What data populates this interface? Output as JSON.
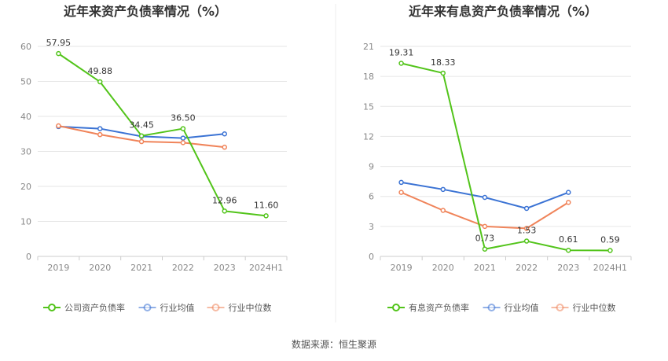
{
  "source": "数据来源：恒生聚源",
  "chart_data": [
    {
      "type": "line",
      "title": "近年来资产负债率情况（%）",
      "categories": [
        "2019",
        "2020",
        "2021",
        "2022",
        "2023",
        "2024H1"
      ],
      "y_ticks": [
        "0",
        "10",
        "20",
        "30",
        "40",
        "50",
        "60"
      ],
      "ylim": [
        0,
        60
      ],
      "grid": true,
      "legend_position": "bottom",
      "series": [
        {
          "name": "公司资产负债率",
          "color": "#52c41a",
          "values": [
            57.95,
            49.88,
            34.45,
            36.5,
            12.96,
            11.6
          ],
          "labels": [
            "57.95",
            "49.88",
            "34.45",
            "36.50",
            "12.96",
            "11.60"
          ]
        },
        {
          "name": "行业均值",
          "color": "#3b73d4",
          "values": [
            37.1,
            36.5,
            34.3,
            33.8,
            35.0,
            null
          ],
          "labels": []
        },
        {
          "name": "行业中位数",
          "color": "#f0845a",
          "values": [
            37.3,
            34.8,
            32.8,
            32.5,
            31.2,
            null
          ],
          "labels": []
        }
      ]
    },
    {
      "type": "line",
      "title": "近年来有息资产负债率情况（%）",
      "categories": [
        "2019",
        "2020",
        "2021",
        "2022",
        "2023",
        "2024H1"
      ],
      "y_ticks": [
        "0",
        "3",
        "6",
        "9",
        "12",
        "15",
        "18",
        "21"
      ],
      "ylim": [
        0,
        21
      ],
      "grid": true,
      "legend_position": "bottom",
      "series": [
        {
          "name": "有息资产负债率",
          "color": "#52c41a",
          "values": [
            19.31,
            18.33,
            0.73,
            1.53,
            0.61,
            0.59
          ],
          "labels": [
            "19.31",
            "18.33",
            "0.73",
            "1.53",
            "0.61",
            "0.59"
          ]
        },
        {
          "name": "行业均值",
          "color": "#3b73d4",
          "values": [
            7.4,
            6.7,
            5.9,
            4.8,
            6.4,
            null
          ],
          "labels": []
        },
        {
          "name": "行业中位数",
          "color": "#f0845a",
          "values": [
            6.4,
            4.6,
            3.0,
            2.8,
            5.4,
            null
          ],
          "labels": []
        }
      ]
    }
  ]
}
